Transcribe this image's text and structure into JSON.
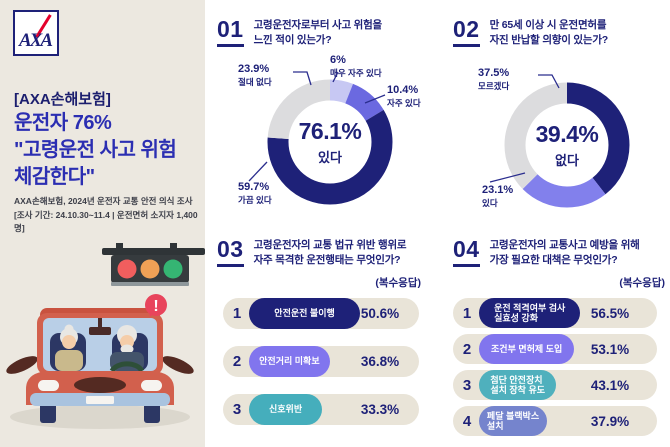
{
  "brand": {
    "logo_text": "AXA",
    "panel_tag": "[AXA손해보험]",
    "headline_lines": [
      "운전자 76%",
      "\"고령운전 사고 위험",
      "체감한다\""
    ],
    "subtitle_line1": "AXA손해보험, 2024년 운전자 교통 안전 의식 조사",
    "subtitle_line2": "[조사 기간: 24.10.30~11.4 | 운전면허 소지자 1,400명]"
  },
  "illustration": {
    "alert_text": "!",
    "traffic_light_colors": {
      "red": "#f15e5e",
      "orange": "#f0a156",
      "green": "#35b573"
    },
    "car_body_color": "#d2604d"
  },
  "colors": {
    "navy": "#1e2178",
    "headline_blue": "#2b2eb2",
    "purple": "#6b69e0",
    "lavender": "#c7c8f3",
    "gray": "#dcdcde",
    "teal": "#45aebc",
    "periwinkle": "#7584cd",
    "panel_beige": "#ece8e0",
    "pill_beige": "#e9e4d8",
    "alert_red": "#e8445c"
  },
  "chart_data": [
    {
      "type": "pie",
      "number": "01",
      "title_lines": [
        "고령운전자로부터 사고 위험을",
        "느낀 적이 있는가?"
      ],
      "center_value": "76.1%",
      "center_label": "있다",
      "legend_position": "callout-labels",
      "segments": [
        {
          "label": "매우 자주 있다",
          "value": 6,
          "display": "6%",
          "color": "#c7c8f3"
        },
        {
          "label": "자주 있다",
          "value": 10.4,
          "display": "10.4%",
          "color": "#6b69e0"
        },
        {
          "label": "가끔 있다",
          "value": 59.7,
          "display": "59.7%",
          "color": "#1e2178"
        },
        {
          "label": "절대 없다",
          "value": 23.9,
          "display": "23.9%",
          "color": "#dcdcde"
        }
      ]
    },
    {
      "type": "pie",
      "number": "02",
      "title_lines": [
        "만 65세 이상 시 운전면허를",
        "자진 반납할 의향이 있는가?"
      ],
      "center_value": "39.4%",
      "center_label": "없다",
      "legend_position": "callout-labels",
      "segments": [
        {
          "label": "없다",
          "value": 39.4,
          "display": "39.4%",
          "color": "#1e2178"
        },
        {
          "label": "있다",
          "value": 23.1,
          "display": "23.1%",
          "color": "#8280ec"
        },
        {
          "label": "모르겠다",
          "value": 37.5,
          "display": "37.5%",
          "color": "#dcdcde"
        }
      ]
    },
    {
      "type": "bar",
      "number": "03",
      "title_lines": [
        "고령운전자의 교통 법규 위반 행위로",
        "자주 목격한 운전행태는 무엇인가?"
      ],
      "note": "(복수응답)",
      "bar_scale": 1.12,
      "bars": [
        {
          "rank": "1",
          "label": "안전운전 불이행",
          "value": 50.6,
          "display": "50.6%",
          "color": "#1e2178"
        },
        {
          "rank": "2",
          "label": "안전거리 미확보",
          "value": 36.8,
          "display": "36.8%",
          "color": "#8175ee"
        },
        {
          "rank": "3",
          "label": "신호위반",
          "value": 33.3,
          "display": "33.3%",
          "color": "#45aebc"
        }
      ]
    },
    {
      "type": "bar",
      "number": "04",
      "title_lines": [
        "고령운전자의 교통사고 예방을 위해",
        "가장 필요한 대책은 무엇인가?"
      ],
      "note": "(복수응답)",
      "bar_scale": 0.88,
      "bars": [
        {
          "rank": "1",
          "label": "운전 적격여부 검사\n실효성 강화",
          "value": 56.5,
          "display": "56.5%",
          "color": "#1e2178"
        },
        {
          "rank": "2",
          "label": "조건부 면허제 도입",
          "value": 53.1,
          "display": "53.1%",
          "color": "#8175ee"
        },
        {
          "rank": "3",
          "label": "첨단 안전장치\n설치 장착 유도",
          "value": 43.1,
          "display": "43.1%",
          "color": "#4fb0bd"
        },
        {
          "rank": "4",
          "label": "페달 블랙박스\n설치",
          "value": 37.9,
          "display": "37.9%",
          "color": "#7584cd"
        }
      ]
    }
  ]
}
